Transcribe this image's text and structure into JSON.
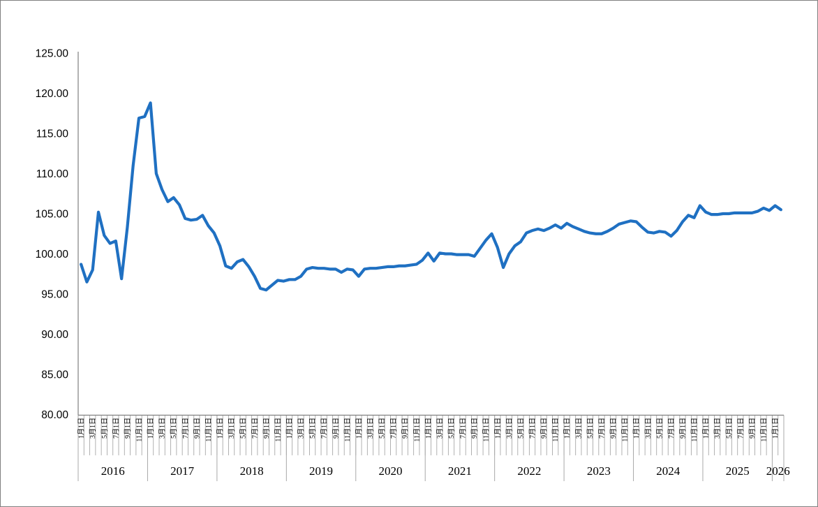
{
  "figure": {
    "background_color": "#ffffff",
    "border_color": "#7f7f7f"
  },
  "y_axis": {
    "labels": [
      "125.00",
      "120.00",
      "115.00",
      "110.00",
      "105.00",
      "100.00",
      "95.00",
      "90.00",
      "85.00",
      "80.00"
    ],
    "max": 125,
    "min": 80,
    "step": 5,
    "text_color": "#000000",
    "axis_line_color": "#808080"
  },
  "x_axis": {
    "month_label_format": "{m}月1日",
    "labeled_months": [
      1,
      3,
      5,
      7,
      9,
      11
    ],
    "tick_color": "#a8a8a8",
    "text_color": "#000000",
    "years": [
      {
        "label": "2016",
        "months": 12
      },
      {
        "label": "2017",
        "months": 12
      },
      {
        "label": "2018",
        "months": 12
      },
      {
        "label": "2019",
        "months": 12
      },
      {
        "label": "2020",
        "months": 12
      },
      {
        "label": "2021",
        "months": 12
      },
      {
        "label": "2022",
        "months": 12
      },
      {
        "label": "2023",
        "months": 12
      },
      {
        "label": "2024",
        "months": 12
      },
      {
        "label": "2025",
        "months": 12
      },
      {
        "label": "2026",
        "months": 2
      }
    ]
  },
  "chart_data": {
    "type": "line",
    "title": "",
    "xlabel": "",
    "ylabel": "",
    "x_start": "2016-01",
    "x_end": "2026-02",
    "x_granularity": "monthly",
    "ylim": [
      80,
      125
    ],
    "y_tick_step": 5,
    "grid": false,
    "legend": false,
    "line_color": "#1f70c2",
    "line_width": 4.2,
    "series": [
      {
        "name": "",
        "values": [
          98.7,
          96.5,
          98.0,
          105.2,
          102.3,
          101.3,
          101.6,
          96.9,
          103.3,
          111.0,
          116.9,
          117.1,
          118.8,
          110.0,
          108.0,
          106.5,
          107.0,
          106.1,
          104.4,
          104.2,
          104.3,
          104.8,
          103.5,
          102.6,
          101.0,
          98.5,
          98.2,
          99.0,
          99.3,
          98.4,
          97.2,
          95.7,
          95.5,
          96.1,
          96.7,
          96.6,
          96.8,
          96.8,
          97.2,
          98.1,
          98.3,
          98.2,
          98.2,
          98.1,
          98.1,
          97.7,
          98.1,
          98.0,
          97.2,
          98.1,
          98.2,
          98.2,
          98.3,
          98.4,
          98.4,
          98.5,
          98.5,
          98.6,
          98.7,
          99.2,
          100.1,
          99.1,
          100.1,
          100.0,
          100.0,
          99.9,
          99.9,
          99.9,
          99.7,
          100.7,
          101.7,
          102.5,
          100.8,
          98.3,
          100.0,
          101.0,
          101.5,
          102.6,
          102.9,
          103.1,
          102.9,
          103.2,
          103.6,
          103.2,
          103.8,
          103.4,
          103.1,
          102.8,
          102.6,
          102.5,
          102.5,
          102.8,
          103.2,
          103.7,
          103.9,
          104.1,
          104.0,
          103.3,
          102.7,
          102.6,
          102.8,
          102.7,
          102.2,
          102.9,
          104.0,
          104.8,
          104.5,
          106.0,
          105.2,
          104.9,
          104.9,
          105.0,
          105.0,
          105.1,
          105.1,
          105.1,
          105.1,
          105.3,
          105.7,
          105.4,
          106.0,
          105.5
        ]
      }
    ]
  }
}
